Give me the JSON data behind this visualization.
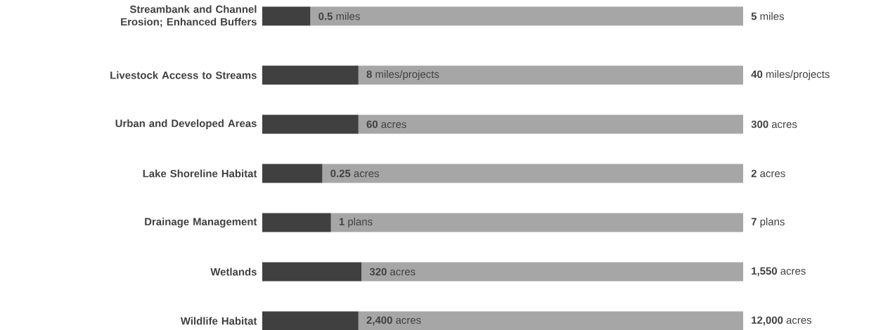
{
  "chart_data": [
    {
      "type": "bar",
      "orientation": "horizontal",
      "stacked": true,
      "categories": [
        "Streambank and Channel Erosion; Enhanced Buffers"
      ],
      "totals": [
        "**5** miles"
      ],
      "series": [
        {
          "color": "#404040",
          "values": [
            0.5
          ],
          "value_labels": [
            "**0.5** miles"
          ]
        },
        {
          "color": "#a6a6a6",
          "values": [
            4.5
          ]
        }
      ]
    },
    {
      "type": "bar",
      "orientation": "horizontal",
      "stacked": true,
      "categories": [
        "Livestock Access to Streams"
      ],
      "totals": [
        "**40** miles/projects"
      ],
      "series": [
        {
          "color": "#404040",
          "values": [
            8
          ],
          "value_labels": [
            "**8** miles/projects"
          ]
        },
        {
          "color": "#a6a6a6",
          "values": [
            32
          ]
        }
      ]
    },
    {
      "type": "bar",
      "orientation": "horizontal",
      "stacked": true,
      "categories": [
        "Urban and Developed Areas"
      ],
      "totals": [
        "**300** acres"
      ],
      "series": [
        {
          "color": "#404040",
          "values": [
            60
          ],
          "value_labels": [
            "**60** acres"
          ]
        },
        {
          "color": "#a6a6a6",
          "values": [
            240
          ]
        }
      ]
    },
    {
      "type": "bar",
      "orientation": "horizontal",
      "stacked": true,
      "categories": [
        "Lake Shoreline Habitat"
      ],
      "totals": [
        "**2** acres"
      ],
      "series": [
        {
          "color": "#404040",
          "values": [
            0.25
          ],
          "value_labels": [
            "**0.25** acres"
          ]
        },
        {
          "color": "#a6a6a6",
          "values": [
            1.75
          ]
        }
      ]
    },
    {
      "type": "bar",
      "orientation": "horizontal",
      "stacked": true,
      "categories": [
        "Drainage Management"
      ],
      "totals": [
        "**7** plans"
      ],
      "series": [
        {
          "color": "#404040",
          "values": [
            1
          ],
          "value_labels": [
            "**1** plans"
          ]
        },
        {
          "color": "#a6a6a6",
          "values": [
            6
          ]
        }
      ]
    },
    {
      "type": "bar",
      "orientation": "horizontal",
      "stacked": true,
      "categories": [
        "Wetlands"
      ],
      "totals": [
        "**1,550** acres"
      ],
      "series": [
        {
          "color": "#404040",
          "values": [
            320
          ],
          "value_labels": [
            "**320** acres"
          ]
        },
        {
          "color": "#a6a6a6",
          "values": [
            1230
          ]
        }
      ]
    },
    {
      "type": "bar",
      "orientation": "horizontal",
      "stacked": true,
      "categories": [
        "Wildlife Habitat"
      ],
      "totals": [
        "**12,000** acres"
      ],
      "series": [
        {
          "color": "#404040",
          "values": [
            2400
          ],
          "value_labels": [
            "**2,400** acres"
          ]
        },
        {
          "color": "#a6a6a6",
          "values": [
            9600
          ]
        }
      ]
    }
  ]
}
